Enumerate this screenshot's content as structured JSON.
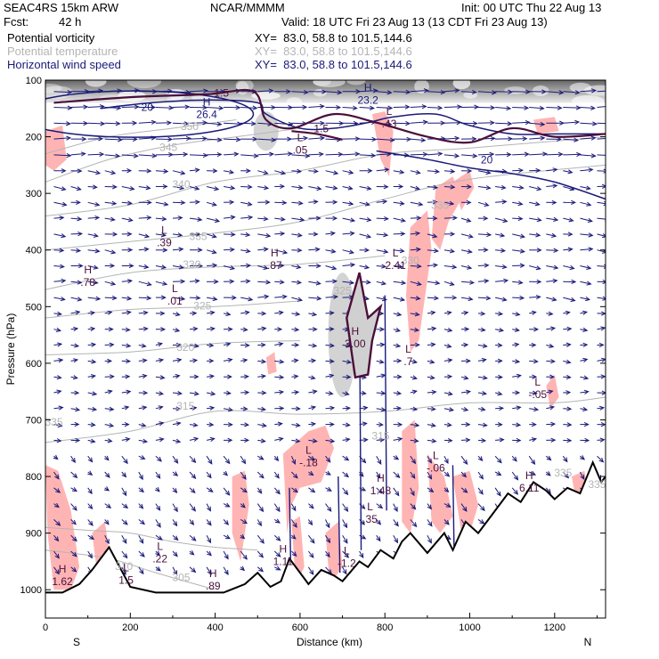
{
  "header": {
    "title": "SEAC4RS 15km ARW",
    "institution": "NCAR/MMMM",
    "init": "Init: 00 UTC Thu 22 Aug 13",
    "fcst_label": "Fcst:",
    "fcst_value": "42 h",
    "valid": "Valid: 18 UTC Fri 23 Aug 13 (13 CDT Fri 23 Aug 13)"
  },
  "fields": [
    {
      "name": "Potential vorticity",
      "xy": "XY=  83.0, 58.8 to 101.5,144.6",
      "color": "#000000"
    },
    {
      "name": "Potential temperature",
      "xy": "XY=  83.0, 58.8 to 101.5,144.6",
      "color": "#b4b4b4"
    },
    {
      "name": "Horizontal wind speed",
      "xy": "XY=  83.0, 58.8 to 101.5,144.6",
      "color": "#1a1a7a"
    }
  ],
  "chart_data": {
    "type": "cross-section",
    "ylabel": "Pressure (hPa)",
    "xlabel": "Distance (km)",
    "xlim": [
      0,
      1320
    ],
    "ylim": [
      1050,
      100
    ],
    "xticks": [
      0,
      200,
      400,
      600,
      800,
      1000,
      1200
    ],
    "yticks": [
      100,
      200,
      300,
      400,
      500,
      600,
      700,
      800,
      900,
      1000
    ],
    "end_labels": {
      "left": "S",
      "right": "N"
    },
    "grid": false,
    "terrain": [
      {
        "x": 0,
        "p": 1005
      },
      {
        "x": 40,
        "p": 1005
      },
      {
        "x": 80,
        "p": 990
      },
      {
        "x": 110,
        "p": 965
      },
      {
        "x": 150,
        "p": 925
      },
      {
        "x": 175,
        "p": 960
      },
      {
        "x": 200,
        "p": 995
      },
      {
        "x": 260,
        "p": 1005
      },
      {
        "x": 320,
        "p": 1005
      },
      {
        "x": 420,
        "p": 1005
      },
      {
        "x": 470,
        "p": 990
      },
      {
        "x": 500,
        "p": 970
      },
      {
        "x": 530,
        "p": 995
      },
      {
        "x": 555,
        "p": 985
      },
      {
        "x": 575,
        "p": 945
      },
      {
        "x": 600,
        "p": 970
      },
      {
        "x": 620,
        "p": 990
      },
      {
        "x": 650,
        "p": 965
      },
      {
        "x": 680,
        "p": 975
      },
      {
        "x": 700,
        "p": 985
      },
      {
        "x": 740,
        "p": 950
      },
      {
        "x": 760,
        "p": 960
      },
      {
        "x": 790,
        "p": 930
      },
      {
        "x": 820,
        "p": 945
      },
      {
        "x": 840,
        "p": 915
      },
      {
        "x": 860,
        "p": 900
      },
      {
        "x": 900,
        "p": 935
      },
      {
        "x": 940,
        "p": 900
      },
      {
        "x": 960,
        "p": 930
      },
      {
        "x": 990,
        "p": 880
      },
      {
        "x": 1020,
        "p": 900
      },
      {
        "x": 1050,
        "p": 870
      },
      {
        "x": 1090,
        "p": 830
      },
      {
        "x": 1120,
        "p": 845
      },
      {
        "x": 1150,
        "p": 810
      },
      {
        "x": 1180,
        "p": 825
      },
      {
        "x": 1200,
        "p": 840
      },
      {
        "x": 1230,
        "p": 820
      },
      {
        "x": 1260,
        "p": 830
      },
      {
        "x": 1290,
        "p": 775
      },
      {
        "x": 1310,
        "p": 810
      },
      {
        "x": 1320,
        "p": 800
      }
    ],
    "theta_contours": [
      {
        "label": "305",
        "label_at": [
          320,
          985
        ],
        "points": [
          [
            0,
            930
          ],
          [
            150,
            945
          ],
          [
            260,
            970
          ],
          [
            400,
            1000
          ]
        ]
      },
      {
        "label": "310",
        "label_at": [
          185,
          965
        ],
        "points": [
          [
            0,
            890
          ],
          [
            100,
            895
          ],
          [
            200,
            900
          ],
          [
            300,
            915
          ],
          [
            400,
            925
          ],
          [
            500,
            930
          ]
        ]
      },
      {
        "label": "315",
        "label_at": [
          330,
          682
        ],
        "points": [
          [
            0,
            740
          ],
          [
            200,
            720
          ],
          [
            400,
            685
          ],
          [
            600,
            690
          ],
          [
            800,
            685
          ],
          [
            1000,
            670
          ],
          [
            1200,
            670
          ],
          [
            1320,
            660
          ]
        ]
      },
      {
        "label": "320",
        "label_at": [
          330,
          578
        ],
        "points": [
          [
            0,
            585
          ],
          [
            200,
            580
          ],
          [
            400,
            565
          ],
          [
            600,
            560
          ]
        ]
      },
      {
        "label": "325",
        "label_at": [
          370,
          505
        ],
        "points": [
          [
            0,
            520
          ],
          [
            200,
            505
          ],
          [
            400,
            500
          ],
          [
            600,
            490
          ]
        ]
      },
      {
        "label": "330",
        "label_at": [
          345,
          432
        ],
        "points": [
          [
            0,
            470
          ],
          [
            200,
            440
          ],
          [
            400,
            430
          ],
          [
            600,
            425
          ],
          [
            800,
            410
          ]
        ]
      },
      {
        "label": "335",
        "label_at": [
          360,
          382
        ],
        "points": [
          [
            0,
            400
          ],
          [
            200,
            385
          ],
          [
            400,
            370
          ],
          [
            600,
            350
          ],
          [
            800,
            310
          ],
          [
            1000,
            275
          ],
          [
            1320,
            250
          ]
        ]
      },
      {
        "label": "340",
        "label_at": [
          320,
          290
        ],
        "points": [
          [
            0,
            340
          ],
          [
            200,
            320
          ],
          [
            400,
            280
          ],
          [
            600,
            260
          ],
          [
            800,
            230
          ],
          [
            1000,
            220
          ],
          [
            1320,
            200
          ]
        ]
      },
      {
        "label": "345",
        "label_at": [
          290,
          225
        ],
        "points": [
          [
            0,
            280
          ],
          [
            150,
            240
          ],
          [
            300,
            215
          ],
          [
            450,
            200
          ],
          [
            600,
            185
          ]
        ]
      },
      {
        "label": "350",
        "label_at": [
          340,
          188
        ],
        "points": [
          [
            0,
            230
          ],
          [
            150,
            200
          ],
          [
            300,
            185
          ],
          [
            450,
            170
          ]
        ]
      }
    ],
    "theta_labels": [
      {
        "label": "335",
        "x": 1220,
        "p": 800
      },
      {
        "label": "335",
        "x": 1300,
        "p": 820
      },
      {
        "label": "315",
        "x": 790,
        "p": 735
      },
      {
        "label": "330",
        "x": 860,
        "p": 425
      },
      {
        "label": "325",
        "x": 700,
        "p": 478
      },
      {
        "label": "335",
        "x": 930,
        "p": 327
      },
      {
        "label": "335",
        "x": 20,
        "p": 710
      }
    ],
    "wind_speed_contours": [
      {
        "label": "20",
        "label_at": [
          240,
          154
        ],
        "points": [
          [
            130,
            150
          ],
          [
            250,
            140
          ],
          [
            390,
            135
          ],
          [
            500,
            140
          ],
          [
            520,
            160
          ],
          [
            600,
            185
          ],
          [
            680,
            185
          ],
          [
            760,
            175
          ],
          [
            820,
            165
          ],
          [
            920,
            160
          ],
          [
            1000,
            180
          ],
          [
            1100,
            195
          ],
          [
            1200,
            195
          ],
          [
            1320,
            195
          ]
        ]
      },
      {
        "label": "20",
        "label_at": [
          1040,
          247
        ],
        "points": [
          [
            780,
            225
          ],
          [
            900,
            240
          ],
          [
            1000,
            255
          ],
          [
            1100,
            265
          ],
          [
            1200,
            280
          ],
          [
            1320,
            310
          ]
        ]
      }
    ],
    "pv_contours": [
      {
        "label": "1.5",
        "label_at": [
          415,
          129
        ],
        "points": [
          [
            20,
            140
          ],
          [
            200,
            130
          ],
          [
            380,
            125
          ],
          [
            490,
            120
          ],
          [
            520,
            170
          ],
          [
            580,
            185
          ],
          [
            680,
            160
          ],
          [
            780,
            175
          ],
          [
            900,
            200
          ],
          [
            1000,
            210
          ],
          [
            1100,
            185
          ],
          [
            1200,
            200
          ],
          [
            1320,
            195
          ]
        ]
      },
      {
        "label": "1.5",
        "label_at": [
          650,
          192
        ],
        "points": [
          [
            580,
            190
          ],
          [
            640,
            195
          ],
          [
            700,
            205
          ]
        ]
      }
    ],
    "wind_speed_extrema": [
      {
        "type": "H",
        "value": "23.2",
        "x": 760,
        "p": 140
      },
      {
        "type": "H",
        "value": "26.4",
        "x": 380,
        "p": 165
      }
    ],
    "pv_extrema": [
      {
        "type": "L",
        "value": ".43",
        "x": 810,
        "p": 182
      },
      {
        "type": "L",
        "value": ".05",
        "x": 600,
        "p": 228
      },
      {
        "type": "L",
        "value": ".39",
        "x": 280,
        "p": 392
      },
      {
        "type": "H",
        "value": ".87",
        "x": 540,
        "p": 432
      },
      {
        "type": "H",
        "value": ".78",
        "x": 100,
        "p": 462
      },
      {
        "type": "L",
        "value": ".01",
        "x": 305,
        "p": 495
      },
      {
        "type": "L",
        "value": "2.41",
        "x": 825,
        "p": 432
      },
      {
        "type": "H",
        "value": "3.00",
        "x": 730,
        "p": 570
      },
      {
        "type": "L",
        "value": ".7",
        "x": 855,
        "p": 602
      },
      {
        "type": "L",
        "value": "-.05",
        "x": 1160,
        "p": 660
      },
      {
        "type": "L",
        "value": "-.18",
        "x": 620,
        "p": 780
      },
      {
        "type": "L",
        "value": "-.06",
        "x": 920,
        "p": 790
      },
      {
        "type": "H",
        "value": "1.48",
        "x": 790,
        "p": 830
      },
      {
        "type": "H",
        "value": "6.11",
        "x": 1140,
        "p": 825
      },
      {
        "type": "L",
        "value": ".35",
        "x": 765,
        "p": 880
      },
      {
        "type": "L",
        "value": ".22",
        "x": 270,
        "p": 950
      },
      {
        "type": "H",
        "value": "1.11",
        "x": 560,
        "p": 955
      },
      {
        "type": "L",
        "value": "-1.2",
        "x": 710,
        "p": 958
      },
      {
        "type": "H",
        "value": "1.62",
        "x": 40,
        "p": 990
      },
      {
        "type": "L",
        "value": "1.5",
        "x": 190,
        "p": 988
      },
      {
        "type": "H",
        "value": ".89",
        "x": 395,
        "p": 998
      }
    ],
    "legend": [
      {
        "name": "Potential vorticity",
        "color": "#000000"
      },
      {
        "name": "Potential temperature",
        "color": "#b4b4b4"
      },
      {
        "name": "Horizontal wind speed",
        "color": "#1a1a7a"
      }
    ],
    "colors": {
      "pv_contour": "#4a0f3a",
      "theta_contour": "#b4b4b4",
      "wind": "#1a1a7a",
      "negative_pv_fill": "#ffb4b4",
      "terrain": "#000000"
    }
  }
}
